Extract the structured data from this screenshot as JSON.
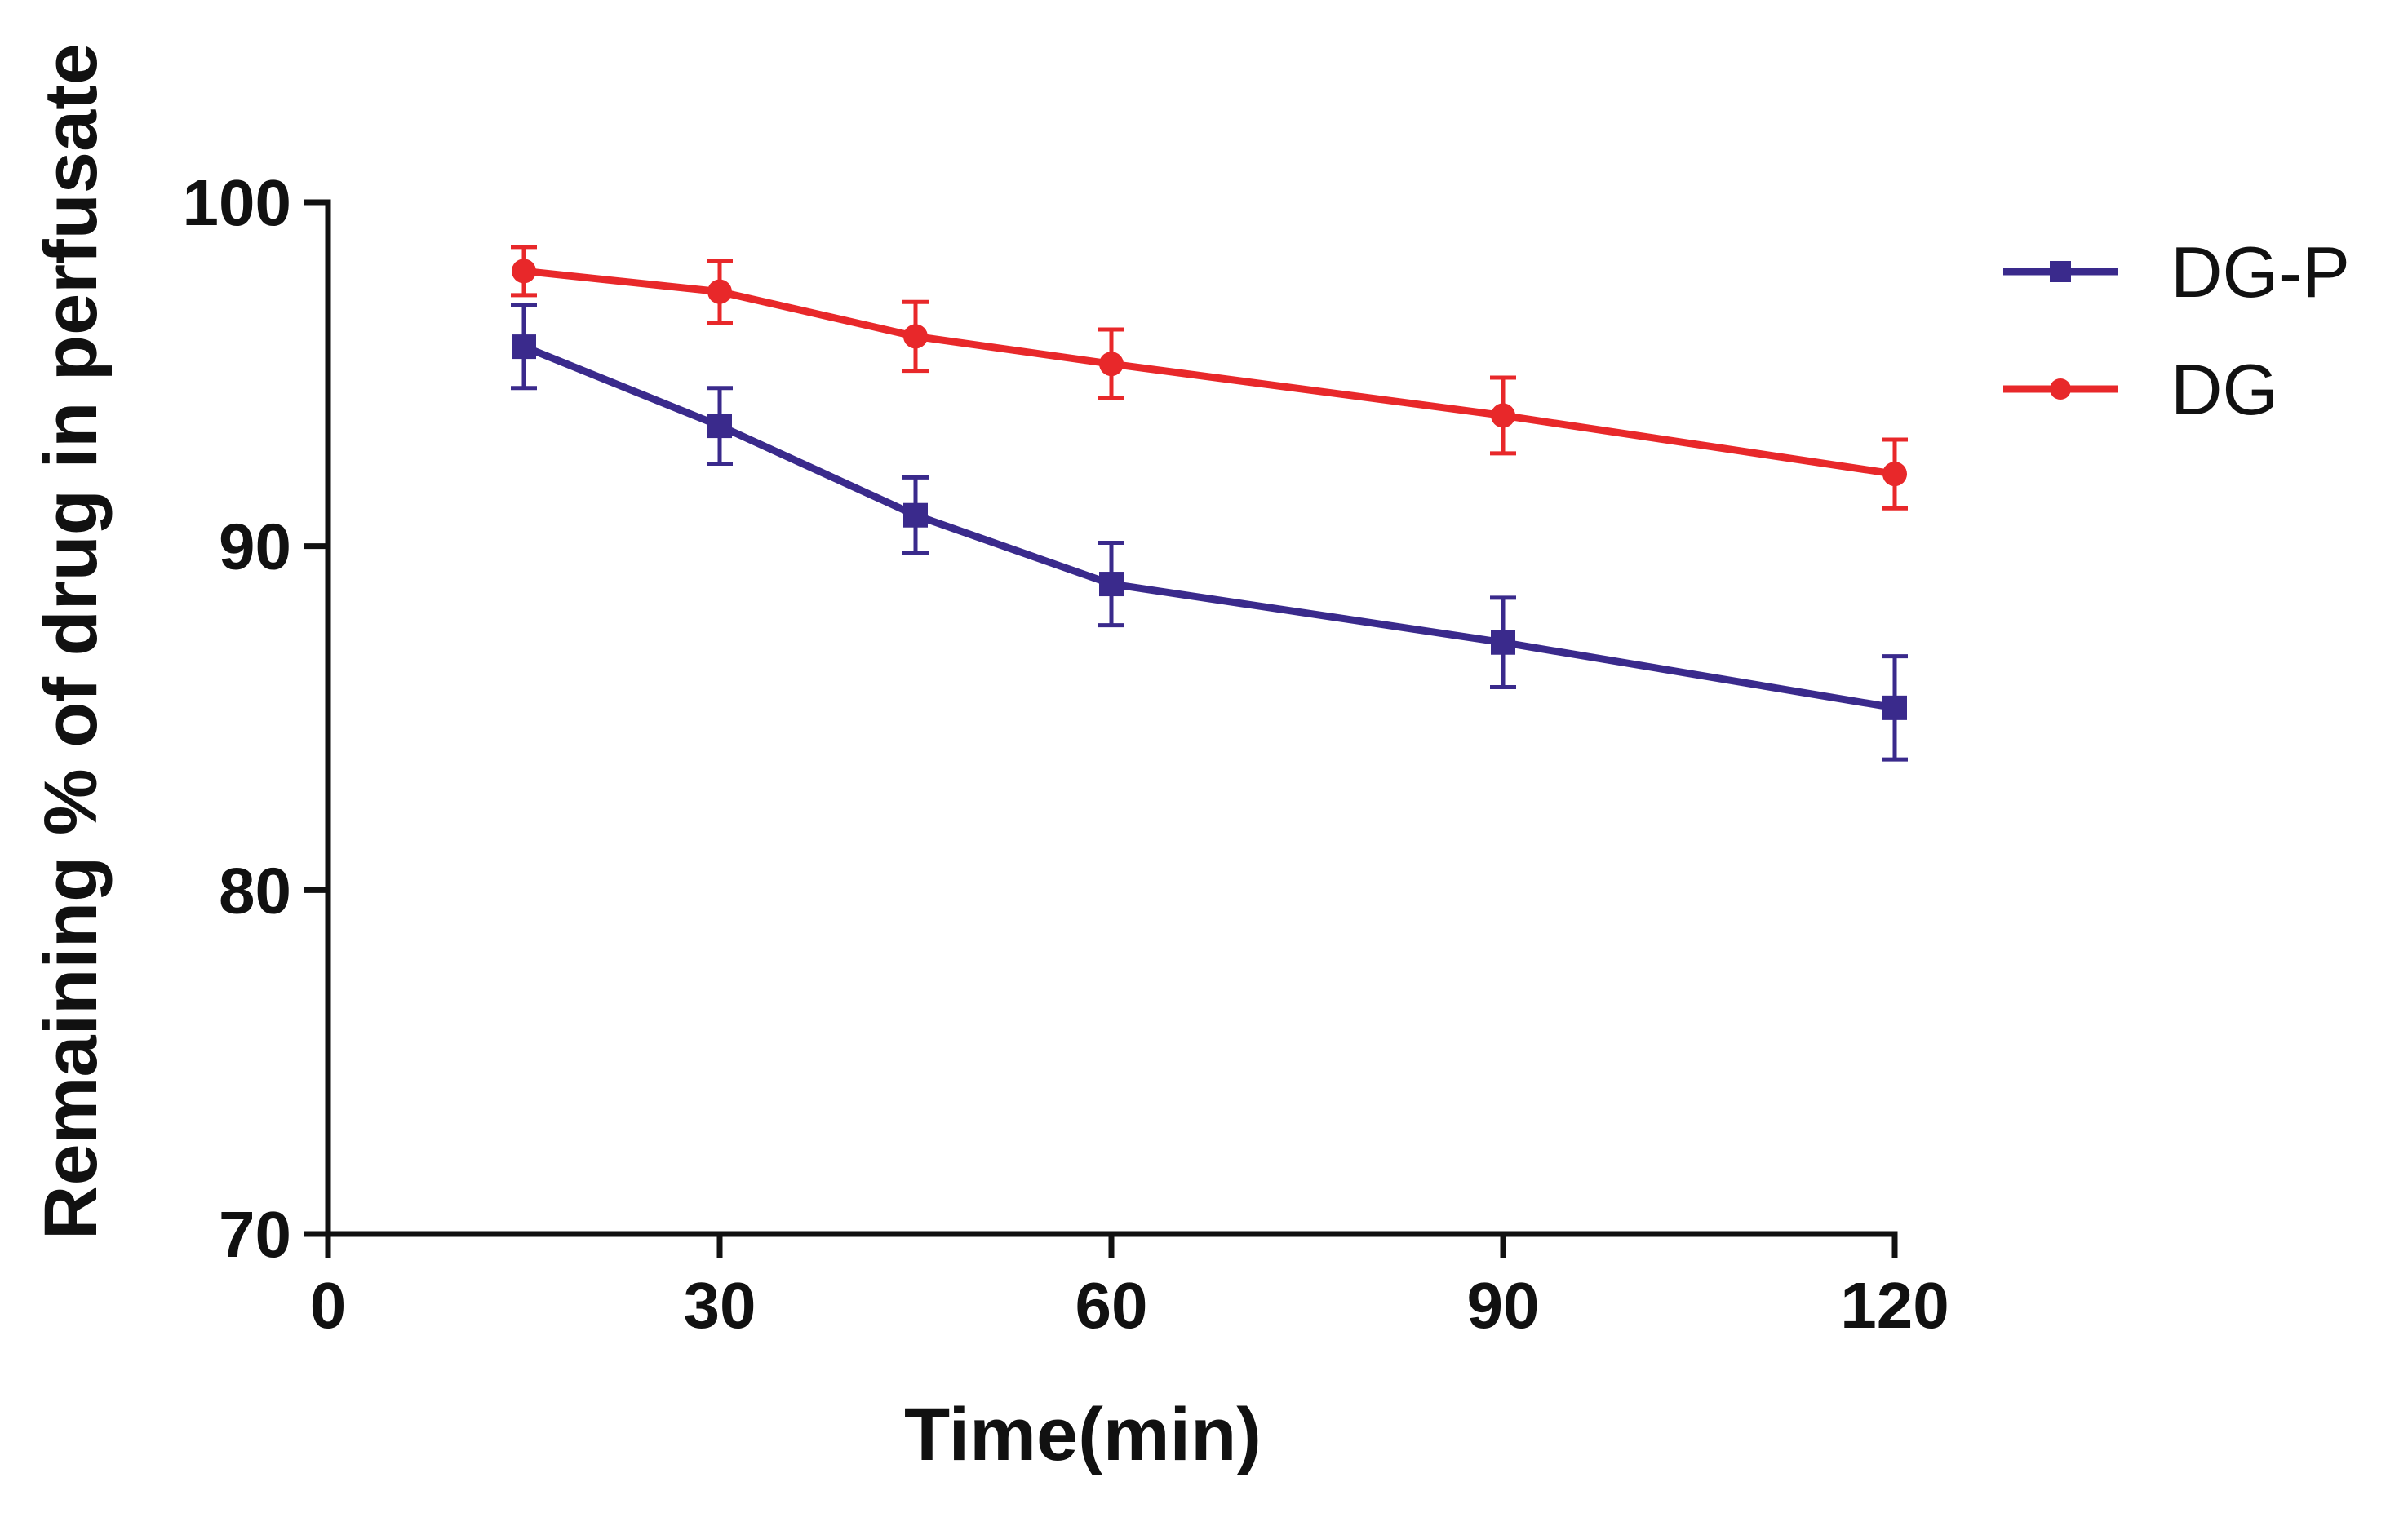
{
  "chart_data": {
    "type": "line",
    "title": "",
    "xlabel": "Time(min)",
    "ylabel": "Remaining % of drug in perfusate",
    "xlim": [
      0,
      120
    ],
    "ylim": [
      70,
      100
    ],
    "xticks": [
      0,
      30,
      60,
      90,
      120
    ],
    "yticks": [
      70,
      80,
      90,
      100
    ],
    "grid": false,
    "legend_position": "top-right",
    "series": [
      {
        "name": "DG-P",
        "color": "#3a2a8c",
        "marker": "square",
        "x": [
          15,
          30,
          45,
          60,
          90,
          120
        ],
        "y": [
          95.8,
          93.5,
          90.9,
          88.9,
          87.2,
          85.3
        ],
        "error": [
          1.2,
          1.1,
          1.1,
          1.2,
          1.3,
          1.5
        ]
      },
      {
        "name": "DG",
        "color": "#e8282a",
        "marker": "circle",
        "x": [
          15,
          30,
          45,
          60,
          90,
          120
        ],
        "y": [
          98.0,
          97.4,
          96.1,
          95.3,
          93.8,
          92.1
        ],
        "error": [
          0.7,
          0.9,
          1.0,
          1.0,
          1.1,
          1.0
        ]
      }
    ]
  }
}
